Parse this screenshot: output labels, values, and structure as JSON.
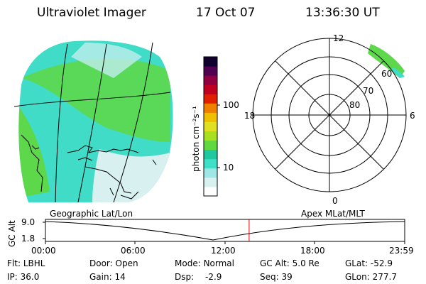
{
  "header": {
    "title": "Ultraviolet Imager",
    "date": "17 Oct 07",
    "time": "13:36:30 UT"
  },
  "colorbar": {
    "unit_label": "photon cm⁻²s⁻¹",
    "ticks": [
      "100",
      "10"
    ],
    "colors": [
      "#ffffff",
      "#d8f0f0",
      "#9fe6e6",
      "#40e0c8",
      "#20c8a0",
      "#60d840",
      "#a8e020",
      "#e0e020",
      "#f0c000",
      "#f08000",
      "#e02000",
      "#c00020",
      "#900040",
      "#500050",
      "#100030"
    ]
  },
  "polar_plot": {
    "mlt_labels": {
      "top": "12",
      "bottom": "0",
      "left": "18",
      "right": "6"
    },
    "lat_labels": [
      "60",
      "70",
      "80"
    ]
  },
  "timeline": {
    "left_caption": "Geographic Lat/Lon",
    "right_caption": "Apex MLat/MLT",
    "y_axis_label": "GC Alt",
    "y_ticks": [
      "9.0",
      "1.8"
    ],
    "x_ticks": [
      "00:00",
      "06:00",
      "12:00",
      "18:00",
      "23:59"
    ],
    "current_time_fraction": 0.567
  },
  "status": {
    "row1": [
      {
        "key": "Flt:",
        "value": "LBHL"
      },
      {
        "key": "Door:",
        "value": "Open"
      },
      {
        "key": "Mode:",
        "value": "Normal"
      },
      {
        "key": "GC Alt:",
        "value": "5.0 Re"
      },
      {
        "key": "GLat:",
        "value": "-52.9"
      }
    ],
    "row2": [
      {
        "key": "IP:",
        "value": "36.0"
      },
      {
        "key": "Gain:",
        "value": "14"
      },
      {
        "key": "Dsp:",
        "value": "-2.9"
      },
      {
        "key": "Seq:",
        "value": "39"
      },
      {
        "key": "GLon:",
        "value": "277.7"
      }
    ]
  }
}
